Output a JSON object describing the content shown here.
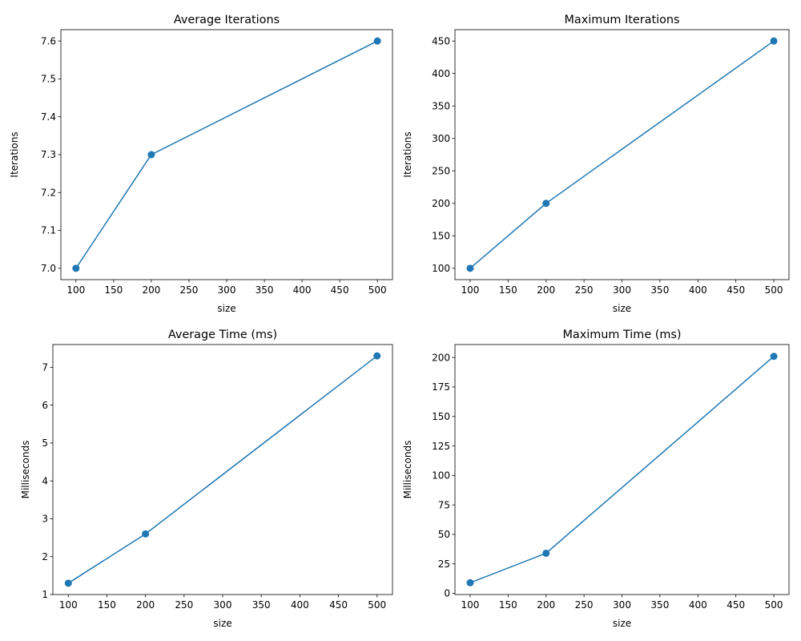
{
  "figure": {
    "line_color": "#1f77b4",
    "background": "#ffffff"
  },
  "chart_data": [
    {
      "type": "line",
      "title": "Average Iterations",
      "xlabel": "size",
      "ylabel": "Iterations",
      "x": [
        100,
        200,
        500
      ],
      "series": [
        {
          "values": [
            7.0,
            7.3,
            7.6
          ],
          "marker": "circle"
        }
      ],
      "xlim": [
        80,
        520
      ],
      "ylim": [
        6.97,
        7.63
      ],
      "xticks": [
        100,
        150,
        200,
        250,
        300,
        350,
        400,
        450,
        500
      ],
      "yticks": [
        7.0,
        7.1,
        7.2,
        7.3,
        7.4,
        7.5,
        7.6
      ],
      "ytick_labels": [
        "7.0",
        "7.1",
        "7.2",
        "7.3",
        "7.4",
        "7.5",
        "7.6"
      ],
      "grid": false
    },
    {
      "type": "line",
      "title": "Maximum Iterations",
      "xlabel": "size",
      "ylabel": "Iterations",
      "x": [
        100,
        200,
        500
      ],
      "series": [
        {
          "values": [
            100,
            200,
            450
          ],
          "marker": "circle"
        }
      ],
      "xlim": [
        80,
        520
      ],
      "ylim": [
        82.5,
        467.5
      ],
      "xticks": [
        100,
        150,
        200,
        250,
        300,
        350,
        400,
        450,
        500
      ],
      "yticks": [
        100,
        150,
        200,
        250,
        300,
        350,
        400,
        450
      ],
      "ytick_labels": [
        "100",
        "150",
        "200",
        "250",
        "300",
        "350",
        "400",
        "450"
      ],
      "grid": false
    },
    {
      "type": "line",
      "title": "Average Time (ms)",
      "xlabel": "size",
      "ylabel": "Milliseconds",
      "x": [
        100,
        200,
        500
      ],
      "series": [
        {
          "values": [
            1.3,
            2.6,
            7.3
          ],
          "marker": "circle"
        }
      ],
      "xlim": [
        80,
        520
      ],
      "ylim": [
        1.0,
        7.6
      ],
      "xticks": [
        100,
        150,
        200,
        250,
        300,
        350,
        400,
        450,
        500
      ],
      "yticks": [
        1,
        2,
        3,
        4,
        5,
        6,
        7
      ],
      "ytick_labels": [
        "1",
        "2",
        "3",
        "4",
        "5",
        "6",
        "7"
      ],
      "grid": false
    },
    {
      "type": "line",
      "title": "Maximum Time (ms)",
      "xlabel": "size",
      "ylabel": "Milliseconds",
      "x": [
        100,
        200,
        500
      ],
      "series": [
        {
          "values": [
            9,
            34,
            201
          ],
          "marker": "circle"
        }
      ],
      "xlim": [
        80,
        520
      ],
      "ylim": [
        -1,
        211
      ],
      "xticks": [
        100,
        150,
        200,
        250,
        300,
        350,
        400,
        450,
        500
      ],
      "yticks": [
        0,
        25,
        50,
        75,
        100,
        125,
        150,
        175,
        200
      ],
      "ytick_labels": [
        "0",
        "25",
        "50",
        "75",
        "100",
        "125",
        "150",
        "175",
        "200"
      ],
      "grid": false
    }
  ]
}
